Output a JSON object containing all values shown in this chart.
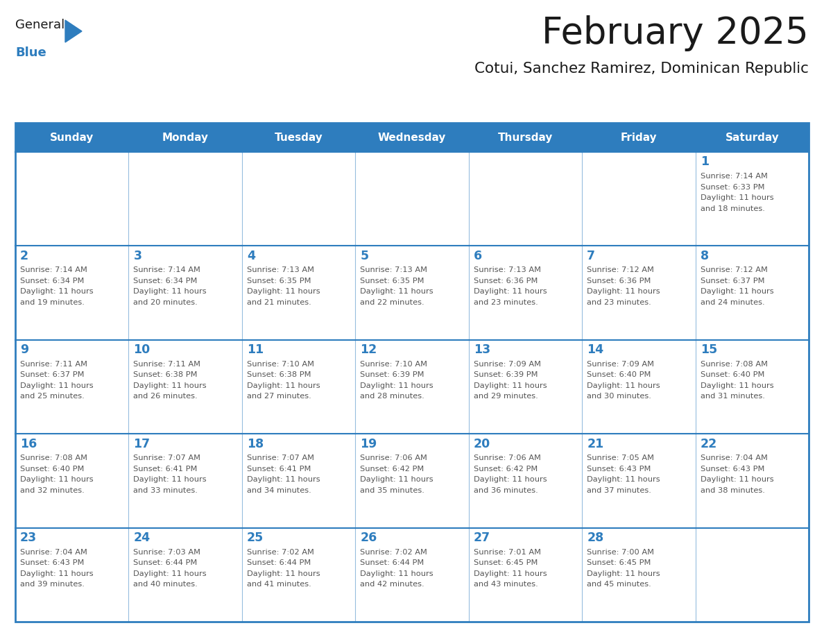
{
  "title": "February 2025",
  "subtitle": "Cotui, Sanchez Ramirez, Dominican Republic",
  "header_color": "#2E7DBE",
  "header_text_color": "#FFFFFF",
  "cell_bg_color": "#FFFFFF",
  "cell_alt_bg_color": "#F2F2F2",
  "cell_border_color": "#2E7DBE",
  "day_number_color": "#2E7DBE",
  "text_color": "#555555",
  "days_of_week": [
    "Sunday",
    "Monday",
    "Tuesday",
    "Wednesday",
    "Thursday",
    "Friday",
    "Saturday"
  ],
  "title_color": "#1A1A1A",
  "subtitle_color": "#1A1A1A",
  "logo_general_color": "#1A1A1A",
  "logo_blue_color": "#2E7DBE",
  "calendar_data": [
    {
      "day": 1,
      "col": 6,
      "row": 0,
      "sunrise": "7:14 AM",
      "sunset": "6:33 PM",
      "daylight_hours": 11,
      "daylight_minutes": 18
    },
    {
      "day": 2,
      "col": 0,
      "row": 1,
      "sunrise": "7:14 AM",
      "sunset": "6:34 PM",
      "daylight_hours": 11,
      "daylight_minutes": 19
    },
    {
      "day": 3,
      "col": 1,
      "row": 1,
      "sunrise": "7:14 AM",
      "sunset": "6:34 PM",
      "daylight_hours": 11,
      "daylight_minutes": 20
    },
    {
      "day": 4,
      "col": 2,
      "row": 1,
      "sunrise": "7:13 AM",
      "sunset": "6:35 PM",
      "daylight_hours": 11,
      "daylight_minutes": 21
    },
    {
      "day": 5,
      "col": 3,
      "row": 1,
      "sunrise": "7:13 AM",
      "sunset": "6:35 PM",
      "daylight_hours": 11,
      "daylight_minutes": 22
    },
    {
      "day": 6,
      "col": 4,
      "row": 1,
      "sunrise": "7:13 AM",
      "sunset": "6:36 PM",
      "daylight_hours": 11,
      "daylight_minutes": 23
    },
    {
      "day": 7,
      "col": 5,
      "row": 1,
      "sunrise": "7:12 AM",
      "sunset": "6:36 PM",
      "daylight_hours": 11,
      "daylight_minutes": 23
    },
    {
      "day": 8,
      "col": 6,
      "row": 1,
      "sunrise": "7:12 AM",
      "sunset": "6:37 PM",
      "daylight_hours": 11,
      "daylight_minutes": 24
    },
    {
      "day": 9,
      "col": 0,
      "row": 2,
      "sunrise": "7:11 AM",
      "sunset": "6:37 PM",
      "daylight_hours": 11,
      "daylight_minutes": 25
    },
    {
      "day": 10,
      "col": 1,
      "row": 2,
      "sunrise": "7:11 AM",
      "sunset": "6:38 PM",
      "daylight_hours": 11,
      "daylight_minutes": 26
    },
    {
      "day": 11,
      "col": 2,
      "row": 2,
      "sunrise": "7:10 AM",
      "sunset": "6:38 PM",
      "daylight_hours": 11,
      "daylight_minutes": 27
    },
    {
      "day": 12,
      "col": 3,
      "row": 2,
      "sunrise": "7:10 AM",
      "sunset": "6:39 PM",
      "daylight_hours": 11,
      "daylight_minutes": 28
    },
    {
      "day": 13,
      "col": 4,
      "row": 2,
      "sunrise": "7:09 AM",
      "sunset": "6:39 PM",
      "daylight_hours": 11,
      "daylight_minutes": 29
    },
    {
      "day": 14,
      "col": 5,
      "row": 2,
      "sunrise": "7:09 AM",
      "sunset": "6:40 PM",
      "daylight_hours": 11,
      "daylight_minutes": 30
    },
    {
      "day": 15,
      "col": 6,
      "row": 2,
      "sunrise": "7:08 AM",
      "sunset": "6:40 PM",
      "daylight_hours": 11,
      "daylight_minutes": 31
    },
    {
      "day": 16,
      "col": 0,
      "row": 3,
      "sunrise": "7:08 AM",
      "sunset": "6:40 PM",
      "daylight_hours": 11,
      "daylight_minutes": 32
    },
    {
      "day": 17,
      "col": 1,
      "row": 3,
      "sunrise": "7:07 AM",
      "sunset": "6:41 PM",
      "daylight_hours": 11,
      "daylight_minutes": 33
    },
    {
      "day": 18,
      "col": 2,
      "row": 3,
      "sunrise": "7:07 AM",
      "sunset": "6:41 PM",
      "daylight_hours": 11,
      "daylight_minutes": 34
    },
    {
      "day": 19,
      "col": 3,
      "row": 3,
      "sunrise": "7:06 AM",
      "sunset": "6:42 PM",
      "daylight_hours": 11,
      "daylight_minutes": 35
    },
    {
      "day": 20,
      "col": 4,
      "row": 3,
      "sunrise": "7:06 AM",
      "sunset": "6:42 PM",
      "daylight_hours": 11,
      "daylight_minutes": 36
    },
    {
      "day": 21,
      "col": 5,
      "row": 3,
      "sunrise": "7:05 AM",
      "sunset": "6:43 PM",
      "daylight_hours": 11,
      "daylight_minutes": 37
    },
    {
      "day": 22,
      "col": 6,
      "row": 3,
      "sunrise": "7:04 AM",
      "sunset": "6:43 PM",
      "daylight_hours": 11,
      "daylight_minutes": 38
    },
    {
      "day": 23,
      "col": 0,
      "row": 4,
      "sunrise": "7:04 AM",
      "sunset": "6:43 PM",
      "daylight_hours": 11,
      "daylight_minutes": 39
    },
    {
      "day": 24,
      "col": 1,
      "row": 4,
      "sunrise": "7:03 AM",
      "sunset": "6:44 PM",
      "daylight_hours": 11,
      "daylight_minutes": 40
    },
    {
      "day": 25,
      "col": 2,
      "row": 4,
      "sunrise": "7:02 AM",
      "sunset": "6:44 PM",
      "daylight_hours": 11,
      "daylight_minutes": 41
    },
    {
      "day": 26,
      "col": 3,
      "row": 4,
      "sunrise": "7:02 AM",
      "sunset": "6:44 PM",
      "daylight_hours": 11,
      "daylight_minutes": 42
    },
    {
      "day": 27,
      "col": 4,
      "row": 4,
      "sunrise": "7:01 AM",
      "sunset": "6:45 PM",
      "daylight_hours": 11,
      "daylight_minutes": 43
    },
    {
      "day": 28,
      "col": 5,
      "row": 4,
      "sunrise": "7:00 AM",
      "sunset": "6:45 PM",
      "daylight_hours": 11,
      "daylight_minutes": 45
    }
  ]
}
